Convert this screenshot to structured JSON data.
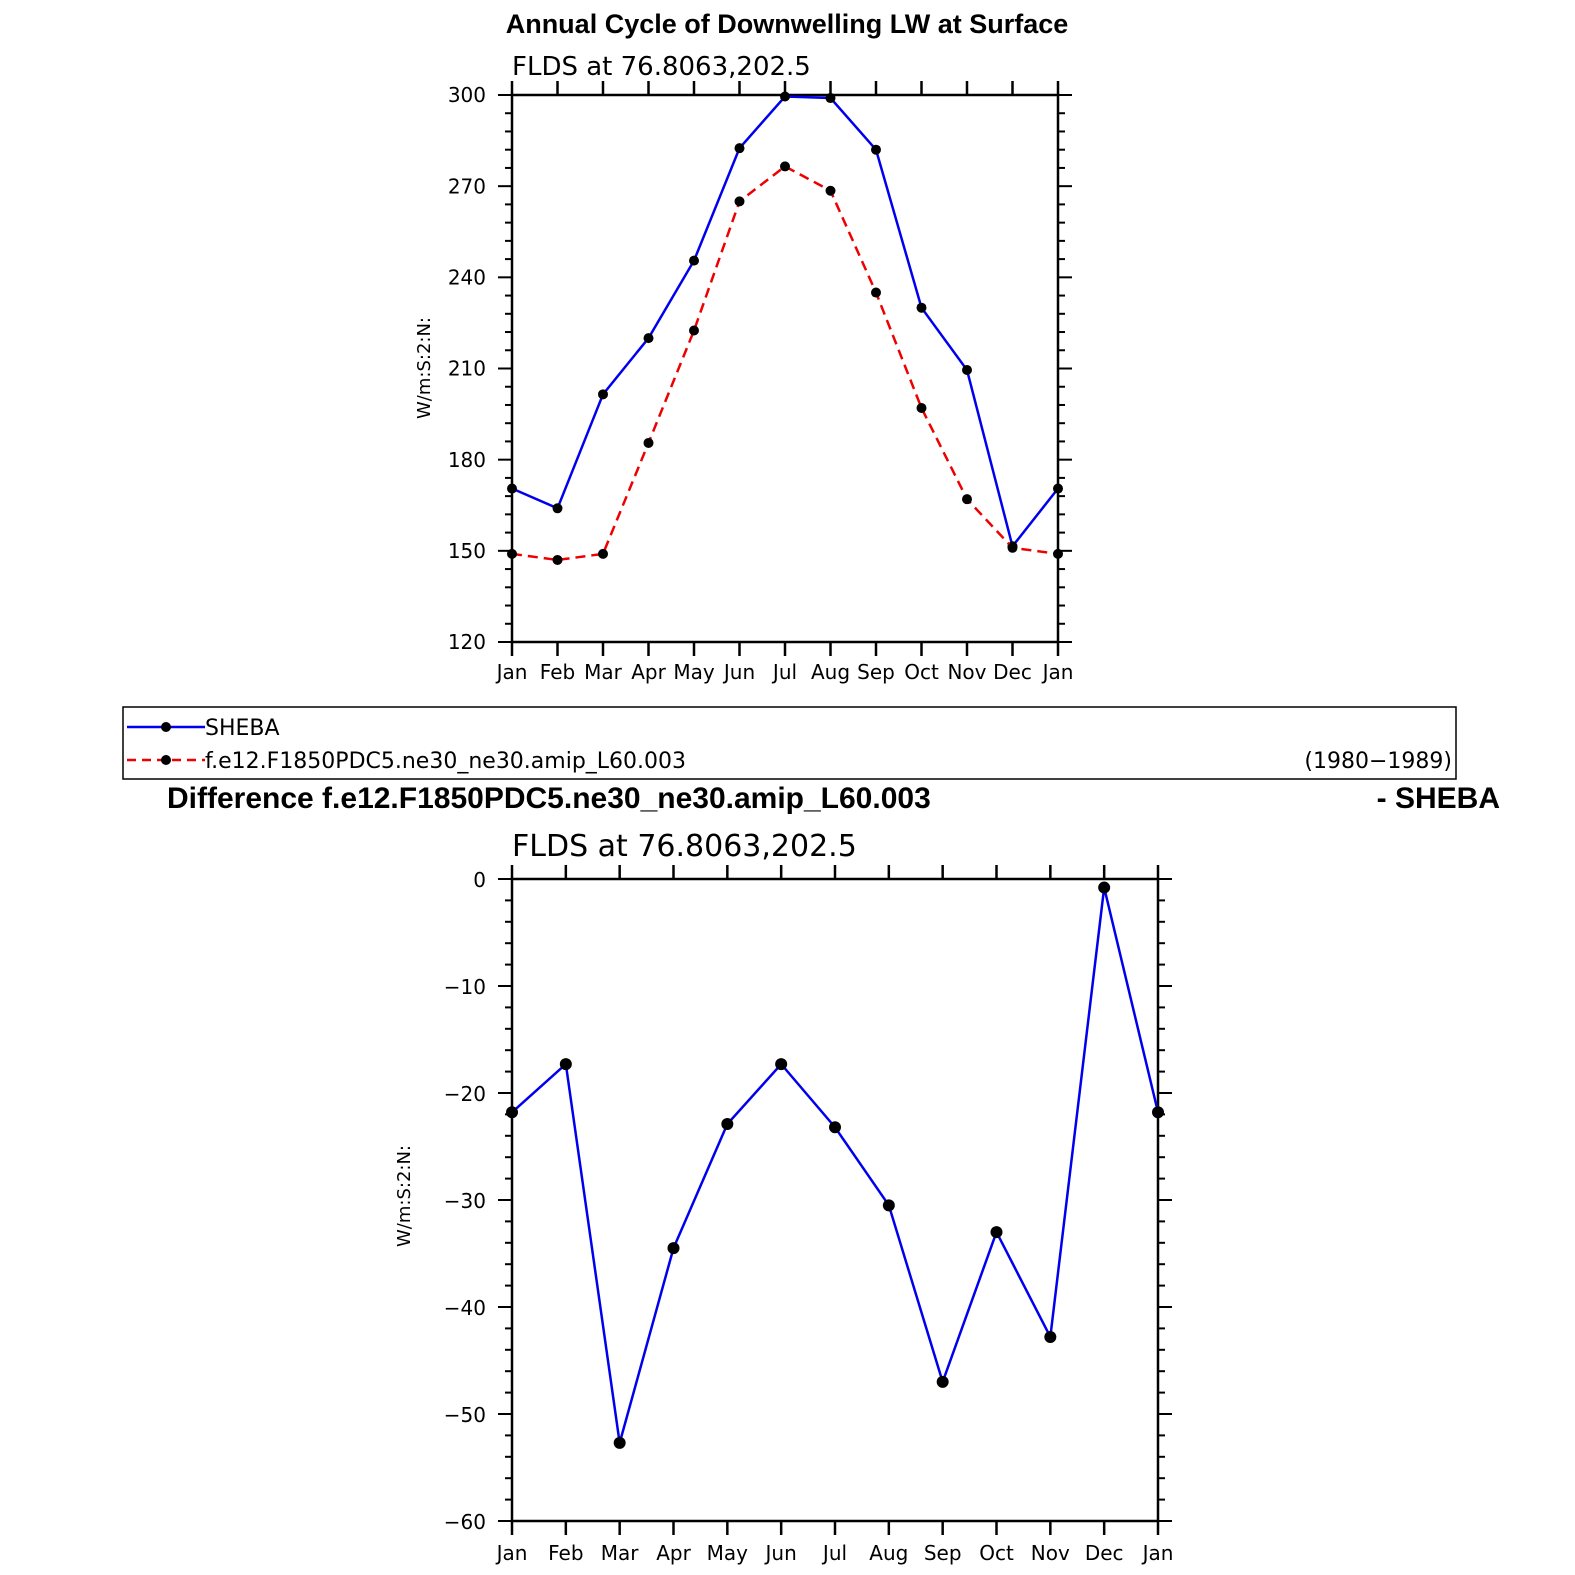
{
  "chart_data": [
    {
      "type": "line",
      "title": "Annual Cycle of Downwelling LW at Surface",
      "subtitle": "FLDS at 76.8063,202.5",
      "ylabel": "W/m:S:2:N:",
      "xlabel": "",
      "categories": [
        "Jan",
        "Feb",
        "Mar",
        "Apr",
        "May",
        "Jun",
        "Jul",
        "Aug",
        "Sep",
        "Oct",
        "Nov",
        "Dec",
        "Jan"
      ],
      "ylim": [
        120,
        300
      ],
      "yticks": [
        120,
        150,
        180,
        210,
        240,
        270,
        300
      ],
      "series": [
        {
          "name": "SHEBA",
          "color": "#0000ee",
          "dash": "solid",
          "values": [
            170.5,
            164,
            201.5,
            220,
            245.5,
            282.5,
            299.5,
            299,
            282,
            230,
            209.5,
            151.5,
            170.5
          ]
        },
        {
          "name": "f.e12.F1850PDC5.ne30_ne30.amip_L60.003",
          "color": "#ee0000",
          "dash": "dashed",
          "values": [
            149,
            147,
            149,
            185.5,
            222.5,
            265,
            276.5,
            268.5,
            235,
            197,
            167,
            151,
            149
          ]
        }
      ],
      "legend": {
        "position": "below",
        "period": "(1980−1989)"
      }
    },
    {
      "type": "line",
      "title_left": "Difference f.e12.F1850PDC5.ne30_ne30.amip_L60.003",
      "title_right": "- SHEBA",
      "subtitle": "FLDS at 76.8063,202.5",
      "ylabel": "W/m:S:2:N:",
      "xlabel": "",
      "categories": [
        "Jan",
        "Feb",
        "Mar",
        "Apr",
        "May",
        "Jun",
        "Jul",
        "Aug",
        "Sep",
        "Oct",
        "Nov",
        "Dec",
        "Jan"
      ],
      "ylim": [
        -60,
        0
      ],
      "yticks": [
        -60,
        -50,
        -40,
        -30,
        -20,
        -10,
        0
      ],
      "series": [
        {
          "color": "#0000ee",
          "dash": "solid",
          "values": [
            -21.8,
            -17.3,
            -52.7,
            -34.5,
            -22.9,
            -17.3,
            -23.2,
            -30.5,
            -47,
            -33,
            -42.8,
            -0.8,
            -21.8
          ]
        }
      ]
    }
  ]
}
